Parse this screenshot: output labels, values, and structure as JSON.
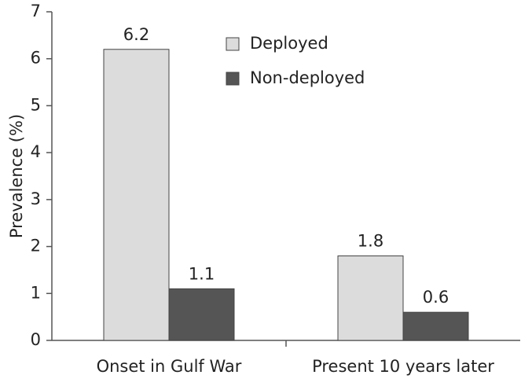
{
  "chart_data": {
    "type": "bar",
    "y_label": "Prevalence (%)",
    "categories": [
      "Onset in Gulf War",
      "Present 10 years later"
    ],
    "series": [
      {
        "name": "Deployed",
        "color": "#dcdcdc",
        "values": [
          6.2,
          1.8
        ]
      },
      {
        "name": "Non-deployed",
        "color": "#555555",
        "values": [
          1.1,
          0.6
        ]
      }
    ],
    "ylim": [
      0,
      7
    ],
    "yticks": [
      0,
      1,
      2,
      3,
      4,
      5,
      6,
      7
    ],
    "legend": "upper-right"
  }
}
